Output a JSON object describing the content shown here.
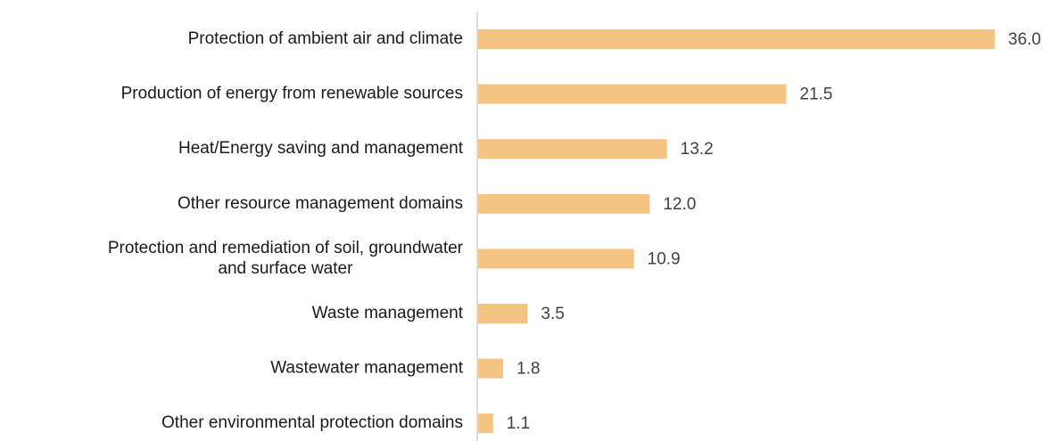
{
  "chart_data": {
    "type": "barh",
    "categories": [
      "Protection of ambient air and climate",
      "Production of energy from renewable sources",
      "Heat/Energy saving and management",
      "Other resource management domains",
      "Protection and remediation of soil, groundwater\nand surface water",
      "Waste management",
      "Wastewater management",
      "Other environmental protection domains"
    ],
    "values": [
      36.0,
      21.5,
      13.2,
      12.0,
      10.9,
      3.5,
      1.8,
      1.1
    ],
    "value_labels": [
      "36.0",
      "21.5",
      "13.2",
      "12.0",
      "10.9",
      "3.5",
      "1.8",
      "1.1"
    ],
    "color": "#f5c382"
  }
}
